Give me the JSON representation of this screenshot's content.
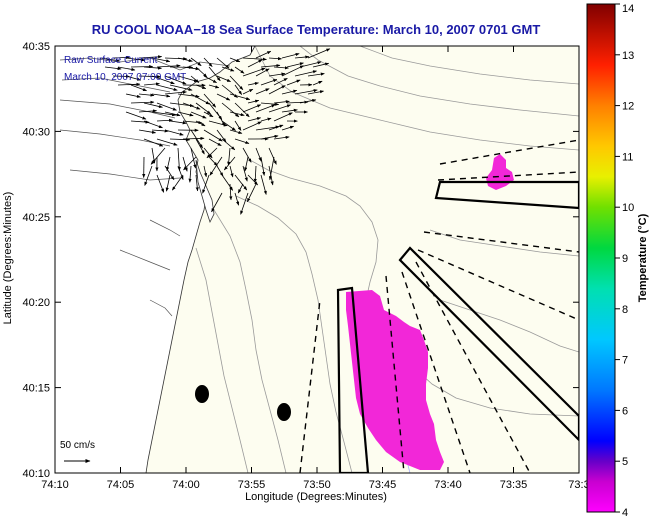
{
  "title": "RU COOL  NOAA−18  Sea Surface Temperature:  March 10, 2007 0701 GMT",
  "legend": {
    "line1": "Raw Surface Current",
    "line2": "March 10, 2007 07:00 GMT"
  },
  "scale_label": "50 cm/s",
  "x_axis": {
    "label": "Longitude (Degrees:Minutes)",
    "ticks": [
      "74:10",
      "74:05",
      "74:00",
      "73:55",
      "73:50",
      "73:45",
      "73:40",
      "73:35",
      "73:3"
    ]
  },
  "y_axis": {
    "label": "Latitude (Degrees:Minutes)",
    "ticks": [
      "40:35",
      "40:30",
      "40:25",
      "40:20",
      "40:15",
      "40:10"
    ]
  },
  "colorbar": {
    "label": "Temperature (°C)",
    "ticks": [
      "14",
      "13",
      "12",
      "11",
      "10",
      "9",
      "8",
      "7",
      "6",
      "5",
      "4"
    ],
    "range": [
      4,
      14
    ]
  },
  "colors": {
    "land": "#ffffff",
    "ocean": "#fdfdf0",
    "sst_patch": "#f227d8",
    "title": "#1a1aa6"
  }
}
